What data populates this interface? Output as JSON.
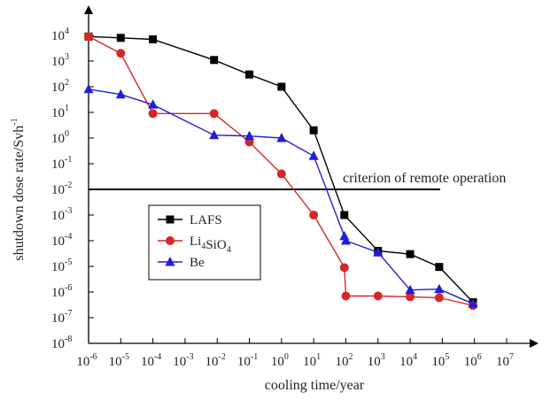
{
  "chart_data": {
    "type": "line",
    "title": "",
    "xlabel": "cooling time/year",
    "ylabel": "shutdown dose rate/Svh",
    "ylabel_sup": "-1",
    "x_scale": "log",
    "y_scale": "log",
    "xlim": [
      1e-06,
      10000000.0
    ],
    "ylim": [
      1e-08,
      10000.0
    ],
    "x_ticks": [
      {
        "base": "10",
        "exp": "-6",
        "value": 1e-06
      },
      {
        "base": "10",
        "exp": "-5",
        "value": 1e-05
      },
      {
        "base": "10",
        "exp": "-4",
        "value": 0.0001
      },
      {
        "base": "10",
        "exp": "-3",
        "value": 0.001
      },
      {
        "base": "10",
        "exp": "-2",
        "value": 0.01
      },
      {
        "base": "10",
        "exp": "-1",
        "value": 0.1
      },
      {
        "base": "10",
        "exp": "0",
        "value": 1
      },
      {
        "base": "10",
        "exp": "1",
        "value": 10
      },
      {
        "base": "10",
        "exp": "2",
        "value": 100
      },
      {
        "base": "10",
        "exp": "3",
        "value": 1000
      },
      {
        "base": "10",
        "exp": "4",
        "value": 10000
      },
      {
        "base": "10",
        "exp": "5",
        "value": 100000
      },
      {
        "base": "10",
        "exp": "6",
        "value": 1000000
      },
      {
        "base": "10",
        "exp": "7",
        "value": 10000000
      }
    ],
    "y_ticks": [
      {
        "base": "10",
        "exp": "4",
        "value": 10000
      },
      {
        "base": "10",
        "exp": "3",
        "value": 1000
      },
      {
        "base": "10",
        "exp": "2",
        "value": 100
      },
      {
        "base": "10",
        "exp": "1",
        "value": 10
      },
      {
        "base": "10",
        "exp": "0",
        "value": 1
      },
      {
        "base": "10",
        "exp": "-1",
        "value": 0.1
      },
      {
        "base": "10",
        "exp": "-2",
        "value": 0.01
      },
      {
        "base": "10",
        "exp": "-3",
        "value": 0.001
      },
      {
        "base": "10",
        "exp": "-4",
        "value": 0.0001
      },
      {
        "base": "10",
        "exp": "-5",
        "value": 1e-05
      },
      {
        "base": "10",
        "exp": "-6",
        "value": 1e-06
      },
      {
        "base": "10",
        "exp": "-7",
        "value": 1e-07
      },
      {
        "base": "10",
        "exp": "-8",
        "value": 1e-08
      }
    ],
    "x_tick_labels_overlay": {
      "first": "1.0",
      "second": "1.0"
    },
    "criterion": {
      "value": 0.01,
      "label": "criterion of remote operation"
    },
    "legend_position": "center-left",
    "series": [
      {
        "name": "LAFS",
        "name_parts": [
          {
            "t": "LAFS",
            "sub": ""
          }
        ],
        "color": "#000000",
        "marker": "square",
        "x": [
          1e-06,
          1e-05,
          0.0001,
          0.008,
          0.1,
          1,
          10,
          90,
          1000,
          10000,
          80000,
          900000
        ],
        "y": [
          9000,
          8000,
          7000,
          1100,
          300,
          100,
          2,
          0.001,
          4e-05,
          3e-05,
          9.5e-06,
          4e-07
        ]
      },
      {
        "name": "Li4SiO4",
        "name_parts": [
          {
            "t": "Li",
            "sub": "4"
          },
          {
            "t": "SiO",
            "sub": "4"
          }
        ],
        "color": "#d62728",
        "marker": "circle",
        "x": [
          1e-06,
          1e-05,
          0.0001,
          0.008,
          0.1,
          1,
          10,
          90,
          100,
          1000,
          10000,
          80000,
          900000
        ],
        "y": [
          9000,
          2000,
          9,
          9,
          0.7,
          0.04,
          0.001,
          9e-06,
          7e-07,
          7e-07,
          6.5e-07,
          6e-07,
          3e-07
        ]
      },
      {
        "name": "Be",
        "name_parts": [
          {
            "t": "Be",
            "sub": ""
          }
        ],
        "color": "#1f1fd6",
        "marker": "triangle",
        "x": [
          1e-06,
          1e-05,
          0.0001,
          0.008,
          0.1,
          1,
          10,
          90,
          100,
          1000,
          10000,
          80000,
          900000
        ],
        "y": [
          80,
          50,
          20,
          1.3,
          1.2,
          1,
          0.2,
          0.00015,
          0.0001,
          3.5e-05,
          1.2e-06,
          1.3e-06,
          3.5e-07
        ]
      }
    ]
  }
}
